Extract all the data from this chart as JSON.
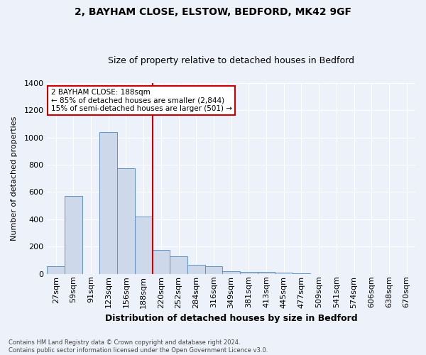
{
  "title1": "2, BAYHAM CLOSE, ELSTOW, BEDFORD, MK42 9GF",
  "title2": "Size of property relative to detached houses in Bedford",
  "xlabel": "Distribution of detached houses by size in Bedford",
  "ylabel": "Number of detached properties",
  "categories": [
    "27sqm",
    "59sqm",
    "91sqm",
    "123sqm",
    "156sqm",
    "188sqm",
    "220sqm",
    "252sqm",
    "284sqm",
    "316sqm",
    "349sqm",
    "381sqm",
    "413sqm",
    "445sqm",
    "477sqm",
    "509sqm",
    "541sqm",
    "574sqm",
    "606sqm",
    "638sqm",
    "670sqm"
  ],
  "values": [
    57,
    570,
    0,
    1040,
    775,
    420,
    175,
    130,
    65,
    55,
    20,
    15,
    12,
    8,
    5,
    0,
    0,
    0,
    0,
    0,
    0
  ],
  "bar_color": "#cdd9ea",
  "bar_edge_color": "#6192c0",
  "vline_color": "#cc0000",
  "vline_index": 5,
  "annotation_text": "2 BAYHAM CLOSE: 188sqm\n← 85% of detached houses are smaller (2,844)\n15% of semi-detached houses are larger (501) →",
  "annotation_box_color": "#ffffff",
  "annotation_box_edge": "#cc0000",
  "ylim": [
    0,
    1400
  ],
  "yticks": [
    0,
    200,
    400,
    600,
    800,
    1000,
    1200,
    1400
  ],
  "footnote": "Contains HM Land Registry data © Crown copyright and database right 2024.\nContains public sector information licensed under the Open Government Licence v3.0.",
  "background_color": "#edf1f9",
  "plot_bg_color": "#edf1f9",
  "grid_color": "#ffffff",
  "title1_fontsize": 10,
  "title2_fontsize": 9,
  "xlabel_fontsize": 9,
  "ylabel_fontsize": 8,
  "tick_fontsize": 8,
  "annot_fontsize": 7.5
}
